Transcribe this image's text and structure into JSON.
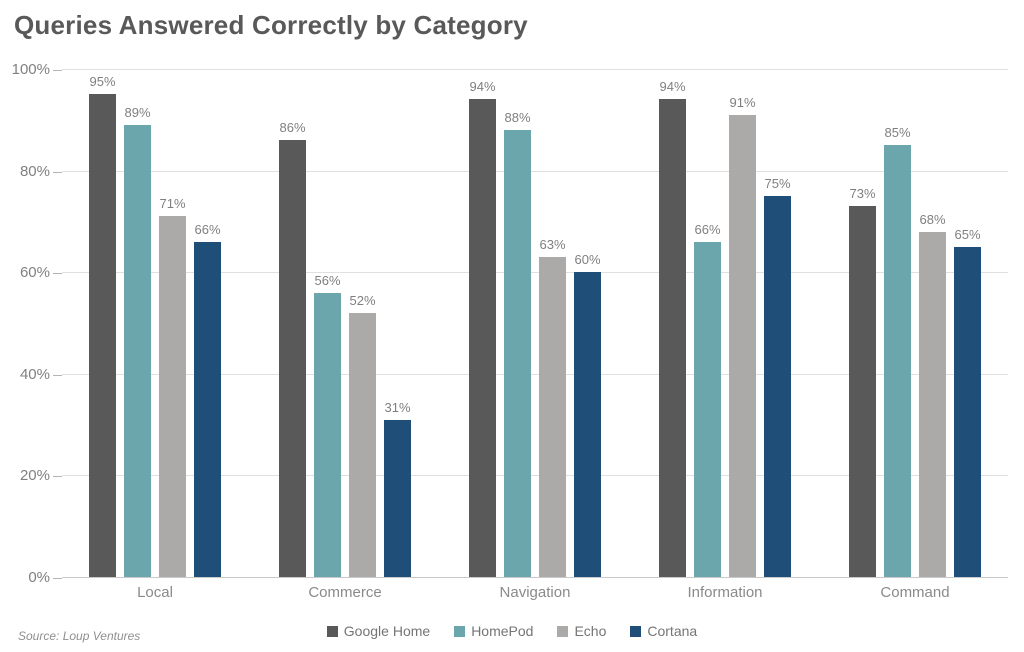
{
  "source": "Source: Loup Ventures",
  "chart_data": {
    "type": "bar",
    "title": "Queries Answered Correctly by Category",
    "categories": [
      "Local",
      "Commerce",
      "Navigation",
      "Information",
      "Command"
    ],
    "series": [
      {
        "name": "Google Home",
        "color": "#595959",
        "values": [
          95,
          86,
          94,
          94,
          73
        ]
      },
      {
        "name": "HomePod",
        "color": "#6BA6AC",
        "values": [
          89,
          56,
          88,
          66,
          85
        ]
      },
      {
        "name": "Echo",
        "color": "#ACA9A9",
        "values": [
          71,
          52,
          63,
          91,
          68
        ]
      },
      {
        "name": "Cortana",
        "color": "#1F4E79",
        "values": [
          66,
          31,
          60,
          75,
          65
        ]
      }
    ],
    "value_suffix": "%",
    "y_tick_labels": [
      "0%",
      "20%",
      "40%",
      "60%",
      "80%",
      "100%"
    ],
    "y_tick_values": [
      0,
      20,
      40,
      60,
      80,
      100
    ],
    "ylim": [
      0,
      100
    ],
    "grid": true,
    "legend_position": "bottom",
    "colors": {
      "title_text": "#595959",
      "data_label_text": "#7f7f7f",
      "axis_label_text": "#8a8a8a",
      "gridline": "#e0e0e0",
      "axis_line": "#c9c9c9"
    }
  }
}
